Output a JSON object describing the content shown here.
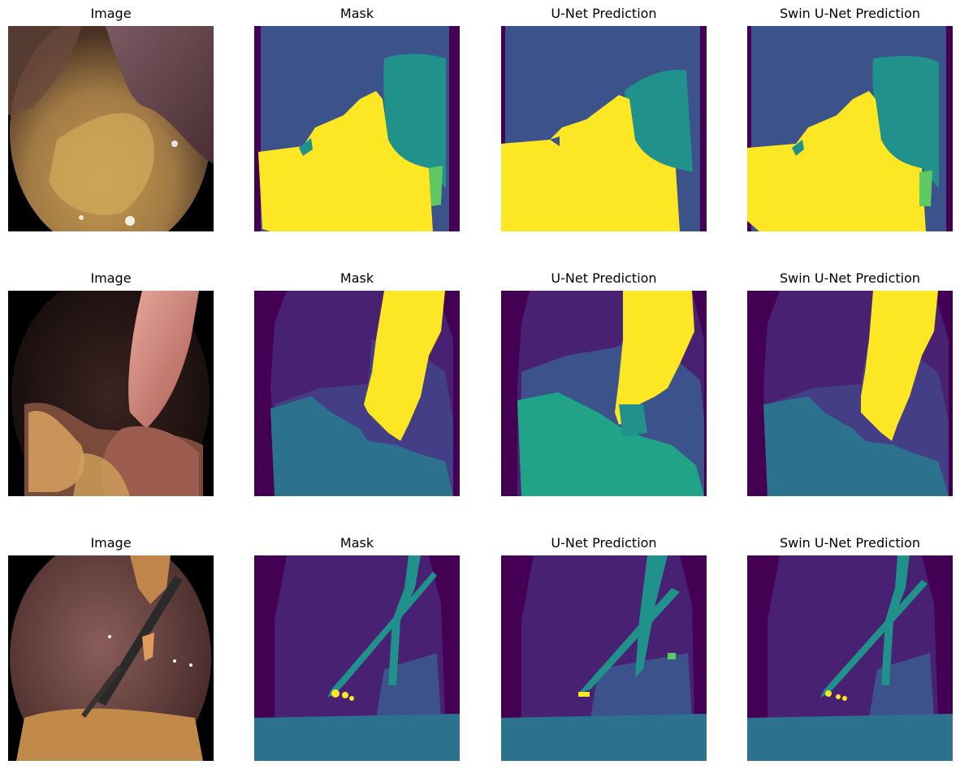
{
  "figure": {
    "rows": [
      {
        "panels": [
          {
            "title": "Image"
          },
          {
            "title": "Mask"
          },
          {
            "title": "U-Net Prediction"
          },
          {
            "title": "Swin U-Net Prediction"
          }
        ]
      },
      {
        "panels": [
          {
            "title": "Image"
          },
          {
            "title": "Mask"
          },
          {
            "title": "U-Net Prediction"
          },
          {
            "title": "Swin U-Net Prediction"
          }
        ]
      },
      {
        "panels": [
          {
            "title": "Image"
          },
          {
            "title": "Mask"
          },
          {
            "title": "U-Net Prediction"
          },
          {
            "title": "Swin U-Net Prediction"
          }
        ]
      }
    ]
  },
  "colors": {
    "background_class": "#440154",
    "class_dark_purple": "#482173",
    "class_indigo": "#433e85",
    "class_blue": "#3b528b",
    "class_steel": "#2c728e",
    "class_teal": "#21918c",
    "class_green_teal": "#20a386",
    "class_green": "#5ec962",
    "class_yellow": "#fde725"
  }
}
